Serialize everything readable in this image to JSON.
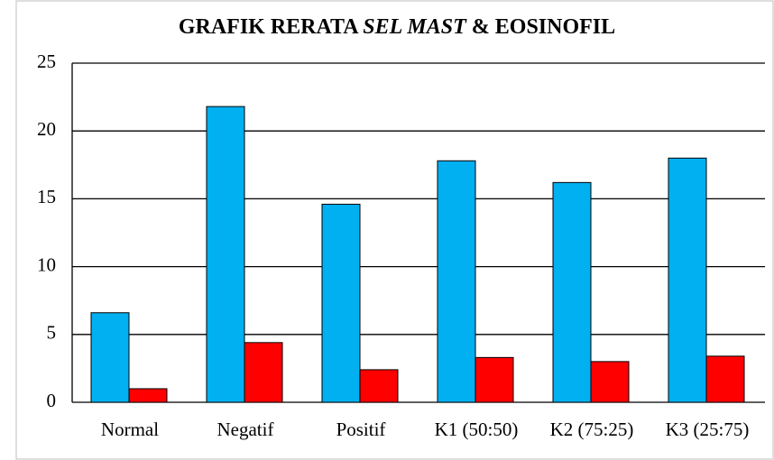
{
  "chart_data": {
    "type": "bar",
    "title": [
      "GRAFIK RERATA",
      "SEL MAST",
      "& EOSINOFIL"
    ],
    "categories": [
      "Normal",
      "Negatif",
      "Positif",
      "K1 (50:50)",
      "K2 (75:25)",
      "K3 (25:75)"
    ],
    "series": [
      {
        "color": "#00b0f0",
        "values": [
          6.6,
          21.8,
          14.6,
          17.8,
          16.2,
          18.0
        ]
      },
      {
        "color": "#ff0000",
        "values": [
          1.0,
          4.4,
          2.4,
          3.3,
          3.0,
          3.4
        ]
      }
    ],
    "ylim": [
      0,
      25
    ],
    "yticks": [
      0,
      5,
      10,
      15,
      20,
      25
    ],
    "grid": true
  }
}
